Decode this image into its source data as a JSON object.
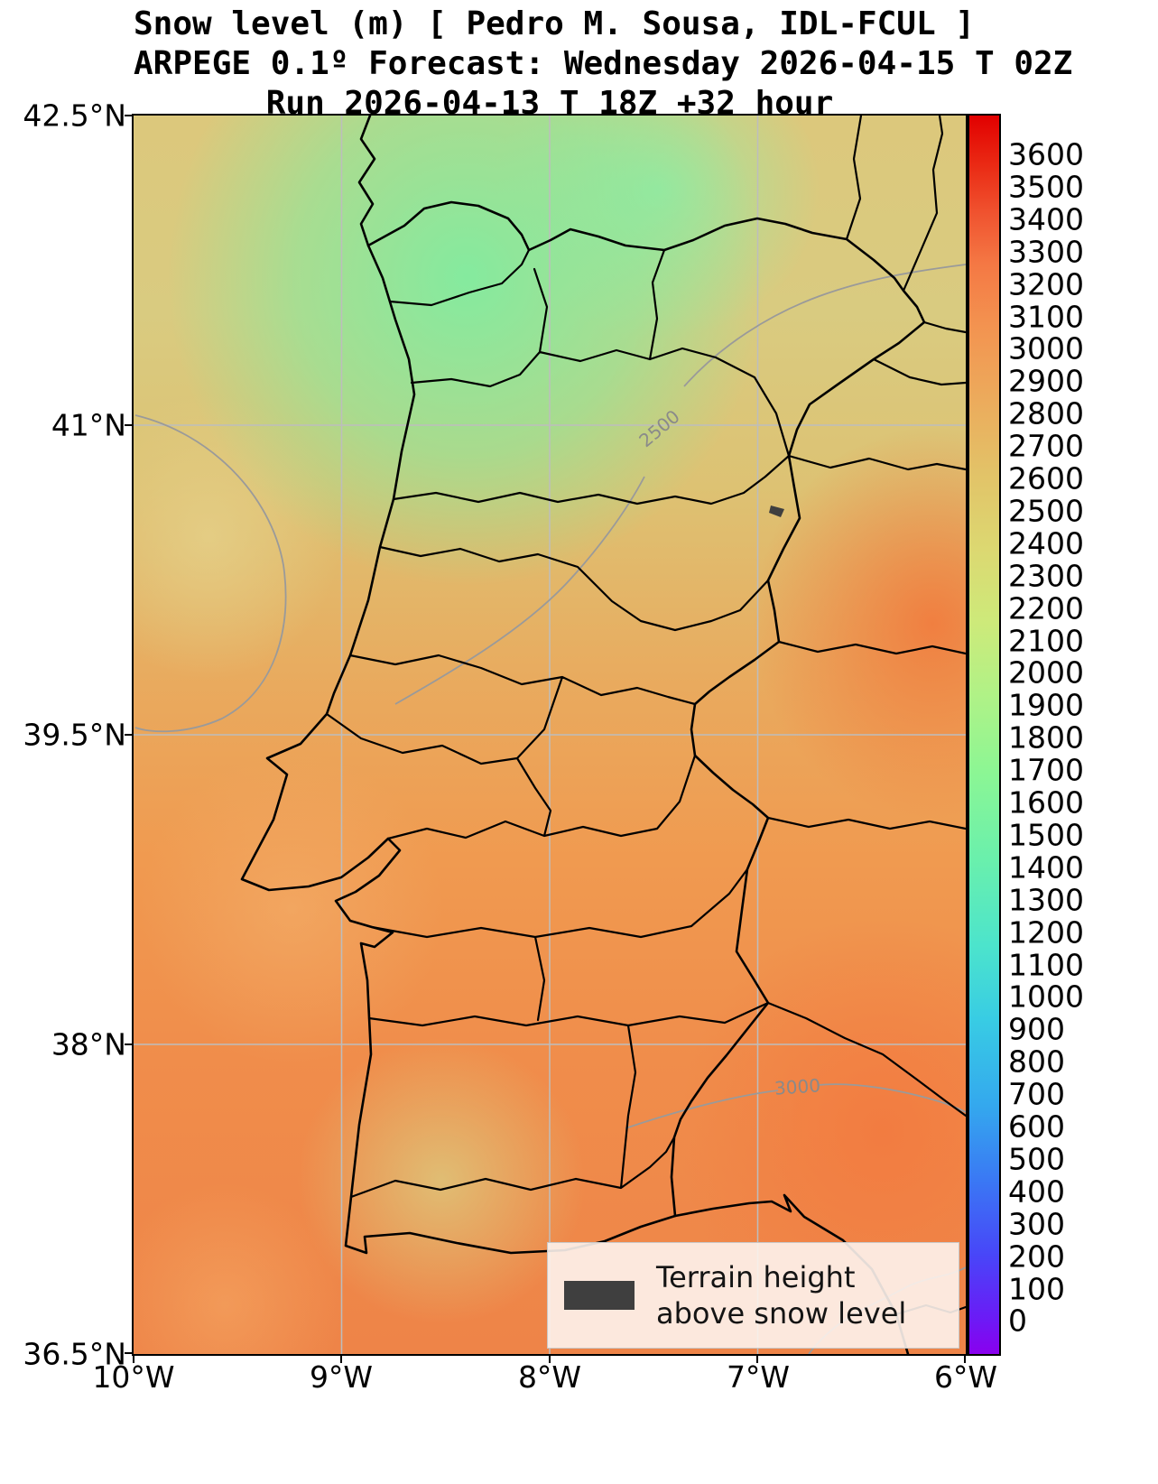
{
  "title": {
    "line1": "Snow level (m) [ Pedro M. Sousa, IDL-FCUL ]",
    "line2": "ARPEGE 0.1º Forecast: Wednesday 2026-04-15 T 02Z",
    "line3": "Run 2026-04-13 T 18Z +32 hour"
  },
  "axes": {
    "x_tick_labels": [
      "10°W",
      "9°W",
      "8°W",
      "7°W",
      "6°W"
    ],
    "y_tick_labels": [
      "42.5°N",
      "41°N",
      "39.5°N",
      "38°N",
      "36.5°N"
    ]
  },
  "colorbar": {
    "tick_labels": [
      "3600",
      "3500",
      "3400",
      "3300",
      "3200",
      "3100",
      "3000",
      "2900",
      "2800",
      "2700",
      "2600",
      "2500",
      "2400",
      "2300",
      "2200",
      "2100",
      "2000",
      "1900",
      "1800",
      "1700",
      "1600",
      "1500",
      "1400",
      "1300",
      "1200",
      "1100",
      "1000",
      "900",
      "800",
      "700",
      "600",
      "500",
      "400",
      "300",
      "200",
      "100",
      "0"
    ],
    "unit": "m"
  },
  "contour_labels": {
    "c2500": "2500",
    "c3000": "3000"
  },
  "legend": {
    "line1": "Terrain height",
    "line2": "above snow level",
    "swatch_color": "#3f3f3f"
  },
  "chart_data": {
    "type": "heatmap",
    "subtype": "geographic filled-contour forecast map",
    "title": "Snow level (m) [ Pedro M. Sousa, IDL-FCUL ]",
    "subtitle": "ARPEGE 0.1º Forecast: Wednesday 2026-04-15 T 02Z",
    "run_info": "Run 2026-04-13 T 18Z +32 hour",
    "units": "m",
    "lon_range_deg": [
      -10,
      -6
    ],
    "lat_range_deg": [
      36.5,
      42.5
    ],
    "gridlines": {
      "lon": [
        -9,
        -8,
        -7
      ],
      "lat": [
        41,
        39.5,
        38
      ]
    },
    "colorbar_range": [
      0,
      3700
    ],
    "colorbar_tick_step": 100,
    "colorbar_ticks": [
      0,
      100,
      200,
      300,
      400,
      500,
      600,
      700,
      800,
      900,
      1000,
      1100,
      1200,
      1300,
      1400,
      1500,
      1600,
      1700,
      1800,
      1900,
      2000,
      2100,
      2200,
      2300,
      2400,
      2500,
      2600,
      2700,
      2800,
      2900,
      3000,
      3100,
      3200,
      3300,
      3400,
      3500,
      3600
    ],
    "colormap_anchors": {
      "0": "#8a00ee",
      "900": "#34a8ee",
      "1800": "#8cf694",
      "2500": "#e2c368",
      "3000": "#f4854c",
      "3600": "#e10000"
    },
    "contour_lines": [
      {
        "value": 2500,
        "color": "gray",
        "label_position": "NE diagonal across map and closed loop offshore NW"
      },
      {
        "value": 3000,
        "color": "gray",
        "label_position": "southern third, roughly W-E"
      }
    ],
    "approx_values_m": [
      {
        "region": "NW / N interior Portugal (Minho)",
        "value": "1800-2100"
      },
      {
        "region": "N Portugal coast (Porto-Aveiro)",
        "value": "2200-2400"
      },
      {
        "region": "NE Tras-os-Montes / NW Spain",
        "value": "2400-2600"
      },
      {
        "region": "Atlantic offshore NW (inside 2500 loop)",
        "value": "2500-2600"
      },
      {
        "region": "Central Portugal / Tagus valley",
        "value": "2600-2800"
      },
      {
        "region": "E Spain mid-map (Salamanca-Caceres)",
        "value": "2900-3100"
      },
      {
        "region": "Alentejo / S Portugal",
        "value": "2700-2900"
      },
      {
        "region": "Algarve interior lighter patch",
        "value": "2500-2700"
      },
      {
        "region": "SE corner (W Andalucia)",
        "value": "2900-3100"
      }
    ],
    "legend": "Dark gray fill marks terrain height above snow level",
    "legend_position": "bottom right inside map",
    "colorbar_position": "right"
  }
}
